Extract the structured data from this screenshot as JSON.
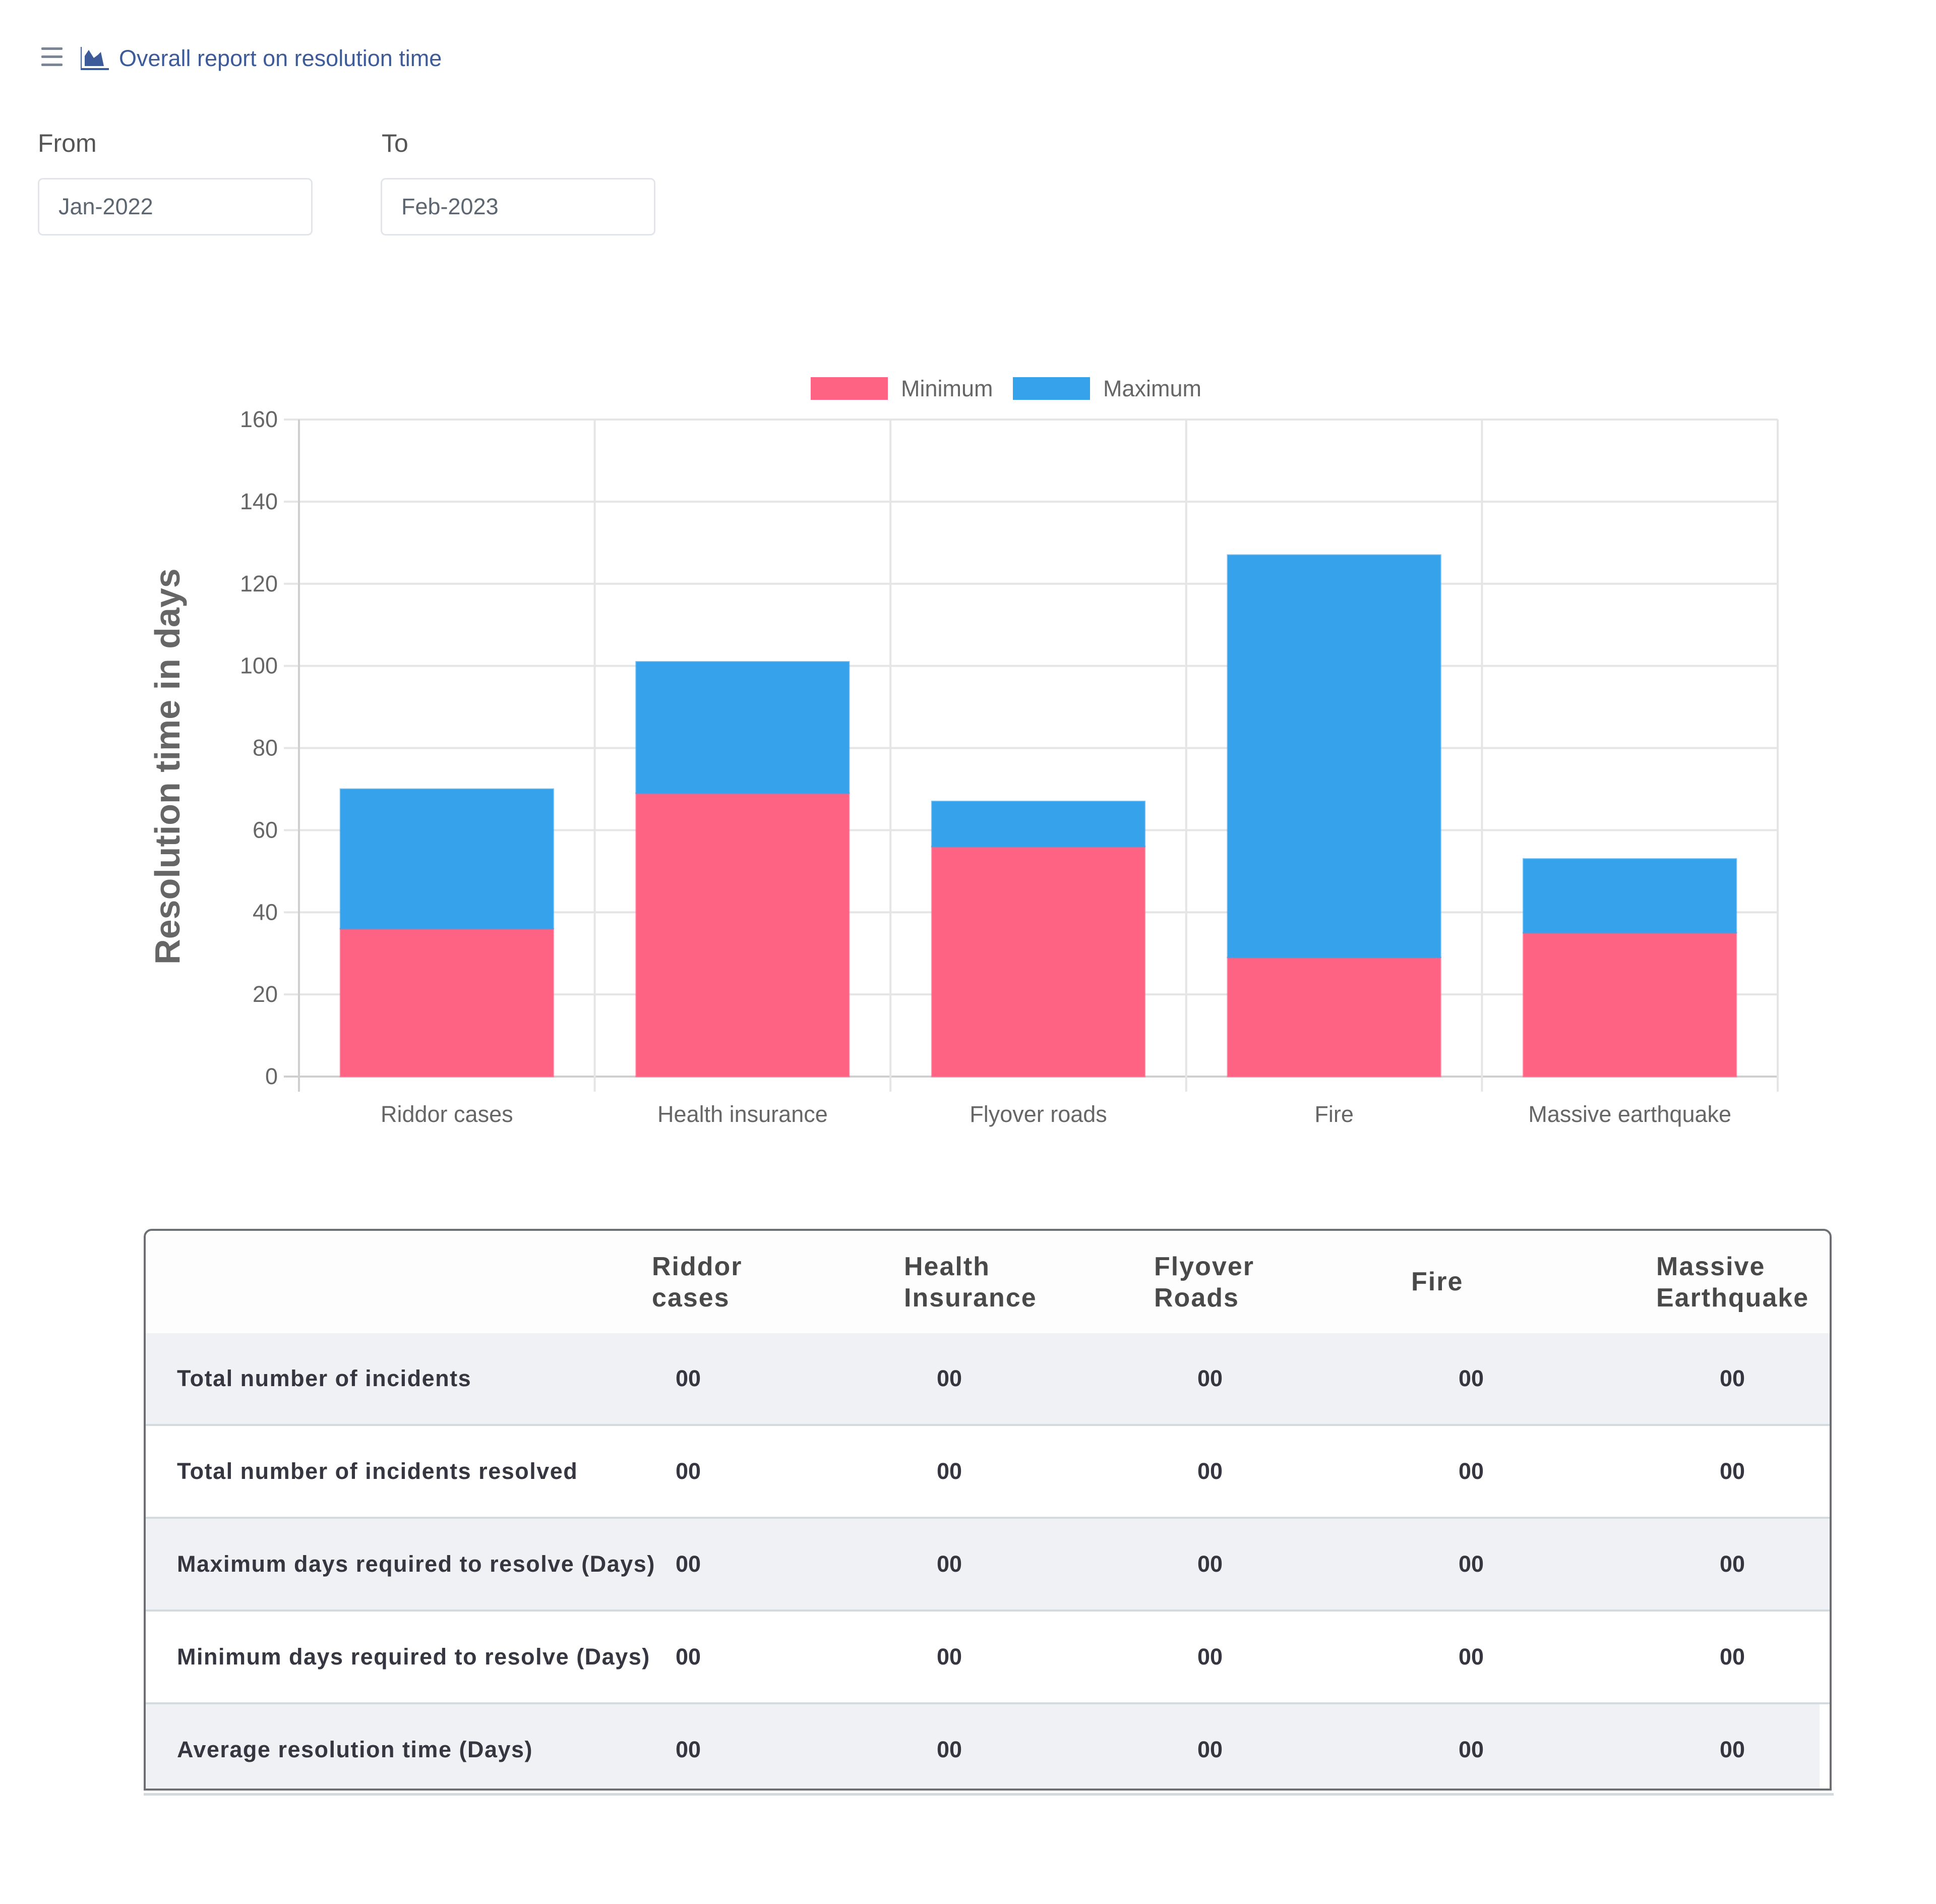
{
  "header": {
    "menu_icon": "hamburger-menu-icon",
    "title_icon": "area-chart-icon",
    "title": "Overall report on resolution time",
    "accent_color": "#3d5a99"
  },
  "filters": {
    "from": {
      "label": "From",
      "value": "Jan-2022"
    },
    "to": {
      "label": "To",
      "value": "Feb-2023"
    }
  },
  "chart_data": {
    "type": "bar",
    "stacked": true,
    "title": "",
    "xlabel": "",
    "ylabel": "Resolution time in days",
    "categories": [
      "Riddor cases",
      "Health insurance",
      "Flyover roads",
      "Fire",
      "Massive earthquake"
    ],
    "series": [
      {
        "name": "Minimum",
        "color": "#ff6384",
        "values": [
          36,
          69,
          56,
          29,
          35
        ]
      },
      {
        "name": "Maximum",
        "color": "#36a2eb",
        "values": [
          70,
          101,
          67,
          127,
          53
        ]
      }
    ],
    "ylim": [
      0,
      160
    ],
    "yticks": [
      0,
      20,
      40,
      60,
      80,
      100,
      120,
      140,
      160
    ],
    "grid": true,
    "legend": "top-center"
  },
  "table": {
    "columns": [
      "Riddor cases",
      "Health Insurance",
      "Flyover Roads",
      "Fire",
      "Massive Earthquake"
    ],
    "column_lines": [
      [
        "Riddor",
        "cases"
      ],
      [
        "Health",
        "Insurance"
      ],
      [
        "Flyover",
        "Roads"
      ],
      [
        "Fire"
      ],
      [
        "Massive",
        "Earthquake"
      ]
    ],
    "rows": [
      {
        "label": "Total number of incidents",
        "values": [
          "00",
          "00",
          "00",
          "00",
          "00"
        ]
      },
      {
        "label": "Total number of incidents resolved",
        "values": [
          "00",
          "00",
          "00",
          "00",
          "00"
        ]
      },
      {
        "label": "Maximum days required to resolve (Days)",
        "values": [
          "00",
          "00",
          "00",
          "00",
          "00"
        ]
      },
      {
        "label": "Minimum days required to resolve (Days)",
        "values": [
          "00",
          "00",
          "00",
          "00",
          "00"
        ]
      },
      {
        "label": "Average resolution time (Days)",
        "values": [
          "00",
          "00",
          "00",
          "00",
          "00"
        ]
      }
    ]
  }
}
